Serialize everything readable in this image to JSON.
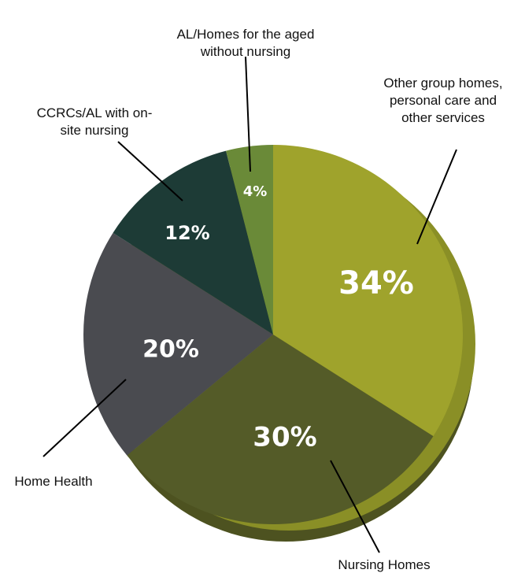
{
  "chart_data": {
    "type": "pie",
    "categories": [
      "Other group homes, personal care and other services",
      "Nursing Homes",
      "Home Health",
      "CCRCs/AL with on-site nursing",
      "AL/Homes for the aged without nursing"
    ],
    "values": [
      34,
      30,
      20,
      12,
      4
    ],
    "value_labels": [
      "34%",
      "30%",
      "20%",
      "12%",
      "4%"
    ],
    "colors": [
      "#9fa32c",
      "#545b28",
      "#4a4b50",
      "#1d3b36",
      "#6a8a38"
    ]
  }
}
